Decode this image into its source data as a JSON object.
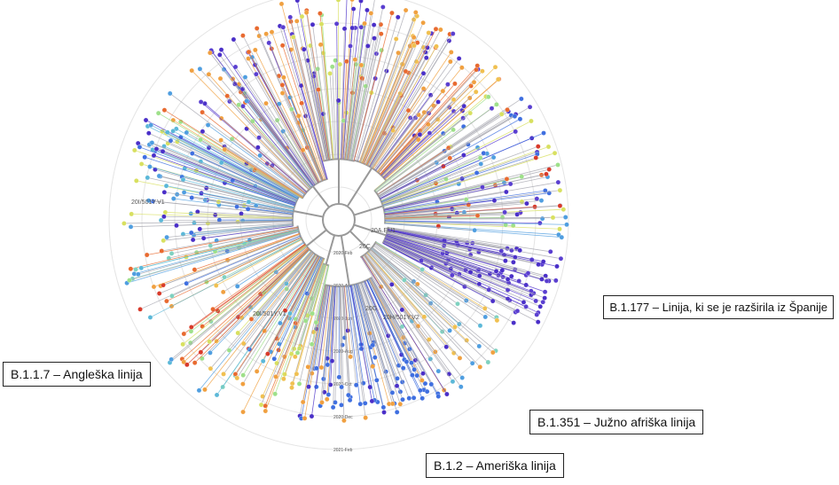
{
  "tree": {
    "time_rings": [
      "2020-Feb",
      "2020-Apr",
      "2020-Jun",
      "2020-Aug",
      "2020-Oct",
      "2020-Dec",
      "2021-Feb"
    ],
    "clade_labels": [
      "20I/501Y.V1",
      "20I/501Y.V1",
      "20A.EU1",
      "20C",
      "20G",
      "20H/501Y.V2",
      "20A",
      "20B"
    ],
    "tip_colors": [
      "#4a2fc8",
      "#5a3fd0",
      "#3f6fe0",
      "#4f9ee0",
      "#5bb8d8",
      "#7fd1c0",
      "#9ee08a",
      "#d8e060",
      "#f0c050",
      "#f0a040",
      "#e86a30",
      "#d83a2a"
    ],
    "branch_color": "#a8a8b0"
  },
  "callouts": {
    "b117": "B.1.1.7 – Angleška linija",
    "b1177": "B.1.177 – Linija, ki se je razširila iz Španije",
    "b1351": "B.1.351 – Južno afriška linija",
    "b12": "B.1.2 – Ameriška linija"
  }
}
